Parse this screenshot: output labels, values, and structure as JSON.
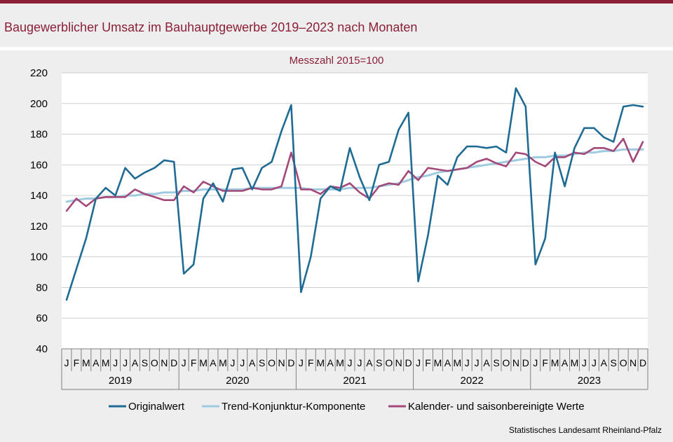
{
  "title": "Baugewerblicher Umsatz im Bauhauptgewerbe 2019–2023 nach Monaten",
  "source": "Statistisches Landesamt Rheinland-Pfalz",
  "chart_data": {
    "type": "line",
    "subtitle": "Messzahl 2015=100",
    "ylim": [
      40,
      220
    ],
    "yticks": [
      40,
      60,
      80,
      100,
      120,
      140,
      160,
      180,
      200,
      220
    ],
    "grid": true,
    "legend_position": "bottom",
    "month_labels": [
      "J",
      "F",
      "M",
      "A",
      "M",
      "J",
      "J",
      "A",
      "S",
      "O",
      "N",
      "D"
    ],
    "years": [
      "2019",
      "2020",
      "2021",
      "2022",
      "2023"
    ],
    "series": [
      {
        "name": "Originalwert",
        "color": "#1f6b94",
        "values": [
          72,
          92,
          112,
          138,
          145,
          140,
          158,
          151,
          155,
          158,
          163,
          162,
          89,
          95,
          138,
          148,
          136,
          157,
          158,
          144,
          158,
          162,
          182,
          199,
          77,
          100,
          138,
          146,
          143,
          171,
          152,
          137,
          160,
          162,
          183,
          194,
          84,
          114,
          153,
          147,
          165,
          172,
          172,
          171,
          172,
          168,
          210,
          198,
          95,
          112,
          168,
          146,
          171,
          184,
          184,
          178,
          175,
          198,
          199,
          198
        ]
      },
      {
        "name": "Trend-Konjunktur-Komponente",
        "color": "#9fcbe0",
        "values": [
          136,
          137,
          138,
          138,
          139,
          139,
          140,
          140,
          141,
          141,
          142,
          142,
          143,
          143,
          144,
          144,
          144,
          144,
          144,
          145,
          145,
          145,
          145,
          145,
          145,
          144,
          144,
          144,
          144,
          145,
          145,
          145,
          146,
          147,
          148,
          150,
          152,
          153,
          155,
          156,
          157,
          158,
          159,
          160,
          161,
          162,
          163,
          164,
          165,
          165,
          166,
          166,
          167,
          168,
          168,
          169,
          169,
          170,
          170,
          170
        ]
      },
      {
        "name": "Kalender- und saisonbereinigte Werte",
        "color": "#a4487a",
        "values": [
          130,
          138,
          133,
          138,
          139,
          139,
          139,
          144,
          141,
          139,
          137,
          137,
          146,
          142,
          149,
          146,
          143,
          143,
          143,
          145,
          144,
          144,
          146,
          168,
          144,
          144,
          141,
          146,
          145,
          148,
          142,
          138,
          146,
          148,
          147,
          156,
          150,
          158,
          157,
          156,
          157,
          158,
          162,
          164,
          161,
          159,
          168,
          167,
          162,
          159,
          165,
          165,
          168,
          167,
          171,
          171,
          169,
          177,
          162,
          175
        ]
      }
    ]
  }
}
